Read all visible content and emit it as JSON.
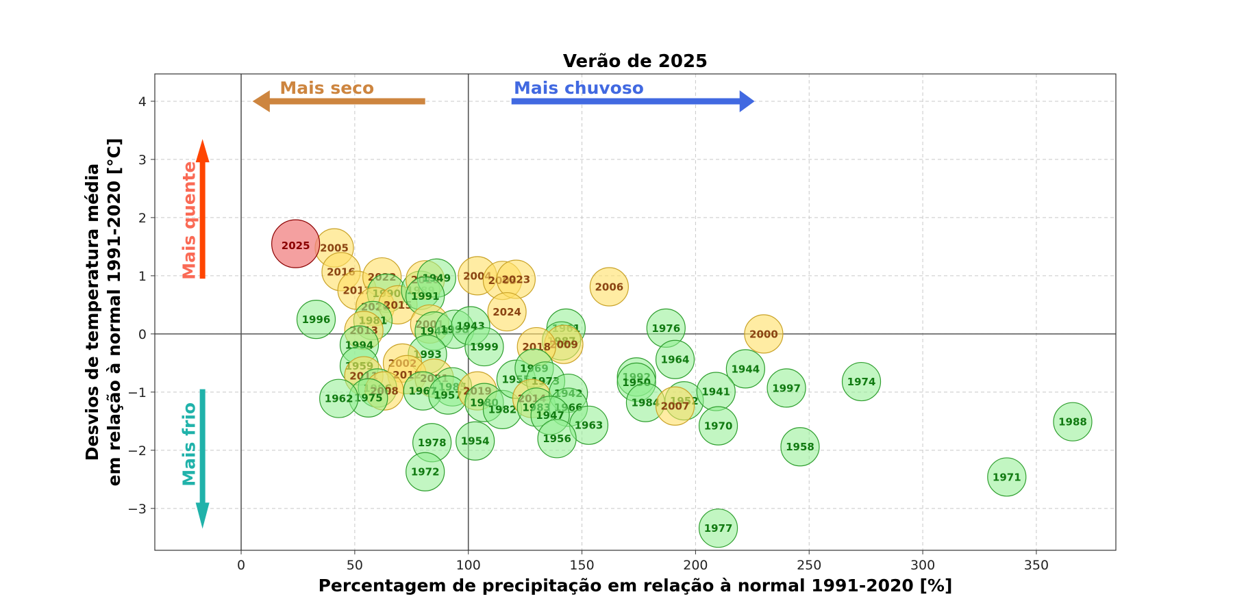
{
  "chart_data": {
    "type": "scatter",
    "title": "Verão de  2025",
    "xlabel": "Percentagem de precipitação em relação à normal 1991-2020 [%]",
    "ylabel_line1": "Desvios de temperatura média",
    "ylabel_line2": "em relação à normal 1991-2020 [°C]",
    "xlim": [
      -38,
      385
    ],
    "ylim": [
      -3.72,
      4.47
    ],
    "xticks": [
      0,
      50,
      100,
      150,
      200,
      250,
      300,
      350
    ],
    "yticks": [
      -3,
      -2,
      -1,
      0,
      1,
      2,
      3,
      4
    ],
    "xtick_labels": [
      "0",
      "50",
      "100",
      "150",
      "200",
      "250",
      "300",
      "350"
    ],
    "ytick_labels": [
      "−3",
      "−2",
      "−1",
      "0",
      "1",
      "2",
      "3",
      "4"
    ],
    "grid": true,
    "annotations": {
      "dry": "Mais seco",
      "wet": "Mais chuvoso",
      "hot": "Mais quente",
      "cold": "Mais frio"
    },
    "colors": {
      "dry": "#CD853F",
      "wet": "#4169E1",
      "hot": "#FF4500",
      "hot_text": "#FA6A55",
      "cold": "#20B2AA",
      "green_fill": "#90EE90",
      "green_edge": "#2E9E2E",
      "green_text": "#117A11",
      "yellow_fill": "#FFE066",
      "yellow_edge": "#C9A227",
      "yellow_text": "#8B4513",
      "highlight_fill": "#F08080",
      "highlight_edge": "#8B0000",
      "highlight_text": "#8B0000"
    },
    "points": [
      {
        "year": "2025",
        "x": 24,
        "y": 1.55,
        "group": "highlight"
      },
      {
        "year": "2005",
        "x": 41,
        "y": 1.48,
        "group": "recent"
      },
      {
        "year": "2016",
        "x": 44,
        "y": 1.07,
        "group": "recent"
      },
      {
        "year": "2017",
        "x": 51,
        "y": 0.75,
        "group": "recent"
      },
      {
        "year": "2022",
        "x": 62,
        "y": 0.98,
        "group": "recent"
      },
      {
        "year": "1990",
        "x": 64,
        "y": 0.7,
        "group": "old"
      },
      {
        "year": "2020",
        "x": 59,
        "y": 0.47,
        "group": "recent"
      },
      {
        "year": "2015",
        "x": 69,
        "y": 0.5,
        "group": "recent"
      },
      {
        "year": "1981",
        "x": 58,
        "y": 0.23,
        "group": "old"
      },
      {
        "year": "1996",
        "x": 33,
        "y": 0.25,
        "group": "old"
      },
      {
        "year": "2013",
        "x": 54,
        "y": 0.06,
        "group": "recent"
      },
      {
        "year": "1994",
        "x": 52,
        "y": -0.19,
        "group": "old"
      },
      {
        "year": "1989",
        "x": 79,
        "y": 0.75,
        "group": "old"
      },
      {
        "year": "2010",
        "x": 81,
        "y": 0.93,
        "group": "recent"
      },
      {
        "year": "1949",
        "x": 86,
        "y": 0.96,
        "group": "old"
      },
      {
        "year": "1991",
        "x": 81,
        "y": 0.65,
        "group": "old"
      },
      {
        "year": "2001",
        "x": 83,
        "y": 0.17,
        "group": "recent"
      },
      {
        "year": "1948",
        "x": 85,
        "y": 0.05,
        "group": "old"
      },
      {
        "year": "1998",
        "x": 94,
        "y": 0.08,
        "group": "old"
      },
      {
        "year": "1943",
        "x": 101,
        "y": 0.14,
        "group": "old"
      },
      {
        "year": "2004",
        "x": 104,
        "y": 1.0,
        "group": "recent"
      },
      {
        "year": "2003",
        "x": 115,
        "y": 0.92,
        "group": "recent"
      },
      {
        "year": "2023",
        "x": 121,
        "y": 0.94,
        "group": "recent"
      },
      {
        "year": "2024",
        "x": 117,
        "y": 0.38,
        "group": "recent"
      },
      {
        "year": "1999",
        "x": 107,
        "y": -0.22,
        "group": "old"
      },
      {
        "year": "2006",
        "x": 162,
        "y": 0.81,
        "group": "recent"
      },
      {
        "year": "1961",
        "x": 143,
        "y": 0.1,
        "group": "old"
      },
      {
        "year": "1987",
        "x": 141,
        "y": -0.12,
        "group": "old"
      },
      {
        "year": "2009",
        "x": 142,
        "y": -0.18,
        "group": "recent"
      },
      {
        "year": "2018",
        "x": 130,
        "y": -0.22,
        "group": "recent"
      },
      {
        "year": "1976",
        "x": 187,
        "y": 0.1,
        "group": "old"
      },
      {
        "year": "1964",
        "x": 191,
        "y": -0.44,
        "group": "old"
      },
      {
        "year": "1944",
        "x": 222,
        "y": -0.6,
        "group": "old"
      },
      {
        "year": "2000",
        "x": 230,
        "y": 0.0,
        "group": "recent"
      },
      {
        "year": "1993",
        "x": 82,
        "y": -0.35,
        "group": "old"
      },
      {
        "year": "1959",
        "x": 52,
        "y": -0.55,
        "group": "old"
      },
      {
        "year": "2011",
        "x": 54,
        "y": -0.72,
        "group": "recent"
      },
      {
        "year": "2002",
        "x": 71,
        "y": -0.5,
        "group": "recent"
      },
      {
        "year": "2012",
        "x": 73,
        "y": -0.7,
        "group": "recent"
      },
      {
        "year": "2021",
        "x": 85,
        "y": -0.76,
        "group": "recent"
      },
      {
        "year": "1985",
        "x": 93,
        "y": -0.91,
        "group": "old"
      },
      {
        "year": "1986",
        "x": 60,
        "y": -0.93,
        "group": "old"
      },
      {
        "year": "2008",
        "x": 63,
        "y": -0.98,
        "group": "recent"
      },
      {
        "year": "1967",
        "x": 80,
        "y": -0.98,
        "group": "old"
      },
      {
        "year": "1975",
        "x": 56,
        "y": -1.1,
        "group": "old"
      },
      {
        "year": "1962",
        "x": 43,
        "y": -1.11,
        "group": "old"
      },
      {
        "year": "1957",
        "x": 91,
        "y": -1.05,
        "group": "old"
      },
      {
        "year": "2019",
        "x": 104,
        "y": -0.98,
        "group": "recent"
      },
      {
        "year": "1980",
        "x": 107,
        "y": -1.18,
        "group": "old"
      },
      {
        "year": "1982",
        "x": 115,
        "y": -1.3,
        "group": "old"
      },
      {
        "year": "1955",
        "x": 121,
        "y": -0.78,
        "group": "old"
      },
      {
        "year": "1969",
        "x": 129,
        "y": -0.59,
        "group": "old"
      },
      {
        "year": "1973",
        "x": 134,
        "y": -0.81,
        "group": "old"
      },
      {
        "year": "2014",
        "x": 128,
        "y": -1.11,
        "group": "recent"
      },
      {
        "year": "1983",
        "x": 130,
        "y": -1.26,
        "group": "old"
      },
      {
        "year": "1942",
        "x": 144,
        "y": -1.02,
        "group": "old"
      },
      {
        "year": "1966",
        "x": 144,
        "y": -1.26,
        "group": "old"
      },
      {
        "year": "1947",
        "x": 136,
        "y": -1.4,
        "group": "old"
      },
      {
        "year": "1963",
        "x": 153,
        "y": -1.57,
        "group": "old"
      },
      {
        "year": "1956",
        "x": 139,
        "y": -1.8,
        "group": "old"
      },
      {
        "year": "1978",
        "x": 84,
        "y": -1.87,
        "group": "old"
      },
      {
        "year": "1954",
        "x": 103,
        "y": -1.84,
        "group": "old"
      },
      {
        "year": "1972",
        "x": 81,
        "y": -2.37,
        "group": "old"
      },
      {
        "year": "1992",
        "x": 174,
        "y": -0.74,
        "group": "old"
      },
      {
        "year": "1950",
        "x": 174,
        "y": -0.83,
        "group": "old"
      },
      {
        "year": "1984",
        "x": 178,
        "y": -1.18,
        "group": "old"
      },
      {
        "year": "1952",
        "x": 195,
        "y": -1.15,
        "group": "old"
      },
      {
        "year": "2007",
        "x": 191,
        "y": -1.24,
        "group": "recent"
      },
      {
        "year": "1941",
        "x": 209,
        "y": -0.99,
        "group": "old"
      },
      {
        "year": "1970",
        "x": 210,
        "y": -1.58,
        "group": "old"
      },
      {
        "year": "1997",
        "x": 240,
        "y": -0.93,
        "group": "old"
      },
      {
        "year": "1958",
        "x": 246,
        "y": -1.94,
        "group": "old"
      },
      {
        "year": "1974",
        "x": 273,
        "y": -0.82,
        "group": "old"
      },
      {
        "year": "1977",
        "x": 210,
        "y": -3.34,
        "group": "old"
      },
      {
        "year": "1971",
        "x": 337,
        "y": -2.46,
        "group": "old"
      },
      {
        "year": "1988",
        "x": 366,
        "y": -1.51,
        "group": "old"
      }
    ]
  }
}
